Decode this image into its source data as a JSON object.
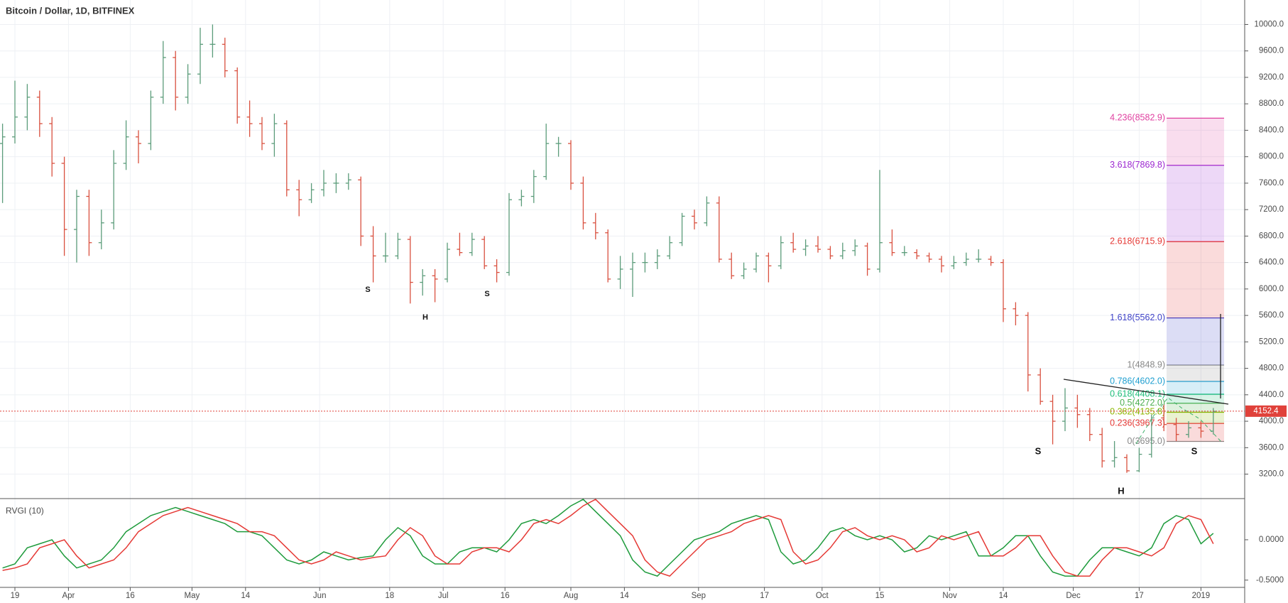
{
  "chart_data": {
    "type": "ohlc",
    "title": "Bitcoin / Dollar, 1D, BITFINEX",
    "x": [
      "03-16",
      "03-19",
      "03-22",
      "03-25",
      "03-28",
      "03-31",
      "04-03",
      "04-06",
      "04-09",
      "04-12",
      "04-15",
      "04-18",
      "04-21",
      "04-24",
      "04-27",
      "04-30",
      "05-03",
      "05-06",
      "05-09",
      "05-12",
      "05-15",
      "05-18",
      "05-21",
      "05-24",
      "05-27",
      "05-30",
      "06-02",
      "06-05",
      "06-08",
      "06-11",
      "06-14",
      "06-17",
      "06-20",
      "06-23",
      "06-26",
      "06-29",
      "07-02",
      "07-05",
      "07-08",
      "07-11",
      "07-14",
      "07-17",
      "07-20",
      "07-23",
      "07-26",
      "07-29",
      "08-01",
      "08-04",
      "08-07",
      "08-10",
      "08-13",
      "08-16",
      "08-19",
      "08-22",
      "08-25",
      "08-28",
      "08-31",
      "09-03",
      "09-06",
      "09-09",
      "09-12",
      "09-15",
      "09-18",
      "09-21",
      "09-24",
      "09-27",
      "09-30",
      "10-03",
      "10-06",
      "10-09",
      "10-12",
      "10-15",
      "10-18",
      "10-21",
      "10-24",
      "10-27",
      "10-30",
      "11-02",
      "11-05",
      "11-08",
      "11-11",
      "11-14",
      "11-17",
      "11-20",
      "11-23",
      "11-26",
      "11-29",
      "12-02",
      "12-05",
      "12-08",
      "12-11",
      "12-14",
      "12-17",
      "12-20",
      "12-23",
      "12-26",
      "12-29",
      "01-01",
      "01-04"
    ],
    "ohlc": [
      [
        8200,
        8500,
        7300,
        8300
      ],
      [
        8300,
        9150,
        8200,
        8600
      ],
      [
        8600,
        9100,
        8400,
        8900
      ],
      [
        8900,
        9000,
        8300,
        8500
      ],
      [
        8500,
        8600,
        7700,
        7900
      ],
      [
        7900,
        8000,
        6500,
        6900
      ],
      [
        6900,
        7500,
        6400,
        7400
      ],
      [
        7400,
        7500,
        6500,
        6700
      ],
      [
        6700,
        7200,
        6600,
        7000
      ],
      [
        7000,
        8100,
        6900,
        7900
      ],
      [
        7900,
        8550,
        7800,
        8300
      ],
      [
        8300,
        8400,
        7900,
        8200
      ],
      [
        8200,
        9000,
        8100,
        8900
      ],
      [
        8900,
        9750,
        8800,
        9500
      ],
      [
        9500,
        9600,
        8700,
        8900
      ],
      [
        8900,
        9400,
        8800,
        9250
      ],
      [
        9250,
        9950,
        9100,
        9700
      ],
      [
        9700,
        10000,
        9500,
        9700
      ],
      [
        9700,
        9800,
        9200,
        9300
      ],
      [
        9300,
        9350,
        8500,
        8600
      ],
      [
        8600,
        8850,
        8300,
        8500
      ],
      [
        8500,
        8600,
        8100,
        8200
      ],
      [
        8200,
        8650,
        8000,
        8500
      ],
      [
        8500,
        8550,
        7400,
        7500
      ],
      [
        7500,
        7650,
        7100,
        7350
      ],
      [
        7350,
        7600,
        7300,
        7500
      ],
      [
        7500,
        7800,
        7400,
        7600
      ],
      [
        7600,
        7750,
        7450,
        7600
      ],
      [
        7600,
        7750,
        7500,
        7650
      ],
      [
        7650,
        7700,
        6650,
        6800
      ],
      [
        6800,
        6950,
        6100,
        6500
      ],
      [
        6500,
        6850,
        6400,
        6500
      ],
      [
        6500,
        6850,
        6450,
        6750
      ],
      [
        6750,
        6800,
        5780,
        6100
      ],
      [
        6100,
        6300,
        5900,
        6200
      ],
      [
        6200,
        6300,
        5800,
        6150
      ],
      [
        6150,
        6700,
        6100,
        6600
      ],
      [
        6600,
        6850,
        6500,
        6550
      ],
      [
        6550,
        6850,
        6500,
        6750
      ],
      [
        6750,
        6800,
        6300,
        6350
      ],
      [
        6350,
        6450,
        6100,
        6250
      ],
      [
        6250,
        7450,
        6200,
        7350
      ],
      [
        7350,
        7500,
        7250,
        7400
      ],
      [
        7400,
        7800,
        7300,
        7700
      ],
      [
        7700,
        8500,
        7650,
        8200
      ],
      [
        8200,
        8300,
        8000,
        8200
      ],
      [
        8200,
        8250,
        7500,
        7600
      ],
      [
        7600,
        7700,
        6900,
        7000
      ],
      [
        7000,
        7150,
        6750,
        6850
      ],
      [
        6850,
        6900,
        6100,
        6150
      ],
      [
        6150,
        6500,
        6000,
        6300
      ],
      [
        6300,
        6550,
        5880,
        6400
      ],
      [
        6400,
        6550,
        6250,
        6400
      ],
      [
        6400,
        6600,
        6300,
        6500
      ],
      [
        6500,
        6800,
        6450,
        6700
      ],
      [
        6700,
        7150,
        6650,
        7100
      ],
      [
        7100,
        7200,
        6900,
        7000
      ],
      [
        7000,
        7400,
        6950,
        7300
      ],
      [
        7300,
        7400,
        6400,
        6450
      ],
      [
        6450,
        6550,
        6150,
        6200
      ],
      [
        6200,
        6400,
        6150,
        6300
      ],
      [
        6300,
        6550,
        6250,
        6500
      ],
      [
        6500,
        6550,
        6100,
        6350
      ],
      [
        6350,
        6800,
        6300,
        6700
      ],
      [
        6700,
        6850,
        6550,
        6600
      ],
      [
        6600,
        6750,
        6500,
        6650
      ],
      [
        6650,
        6800,
        6550,
        6600
      ],
      [
        6600,
        6650,
        6450,
        6500
      ],
      [
        6500,
        6700,
        6450,
        6580
      ],
      [
        6580,
        6750,
        6500,
        6650
      ],
      [
        6650,
        6700,
        6200,
        6300
      ],
      [
        6300,
        7800,
        6250,
        6700
      ],
      [
        6700,
        6900,
        6500,
        6550
      ],
      [
        6550,
        6650,
        6500,
        6550
      ],
      [
        6550,
        6600,
        6450,
        6500
      ],
      [
        6500,
        6550,
        6400,
        6450
      ],
      [
        6450,
        6500,
        6250,
        6350
      ],
      [
        6350,
        6500,
        6300,
        6400
      ],
      [
        6400,
        6550,
        6350,
        6450
      ],
      [
        6450,
        6600,
        6400,
        6450
      ],
      [
        6450,
        6500,
        6350,
        6400
      ],
      [
        6400,
        6450,
        5500,
        5700
      ],
      [
        5700,
        5800,
        5450,
        5600
      ],
      [
        5600,
        5650,
        4450,
        4700
      ],
      [
        4700,
        4800,
        4250,
        4300
      ],
      [
        4300,
        4400,
        3650,
        4000
      ],
      [
        4000,
        4500,
        3850,
        4200
      ],
      [
        4200,
        4400,
        3900,
        4100
      ],
      [
        4100,
        4200,
        3700,
        3800
      ],
      [
        3800,
        3900,
        3300,
        3400
      ],
      [
        3400,
        3700,
        3300,
        3450
      ],
      [
        3450,
        3500,
        3220,
        3250
      ],
      [
        3250,
        3600,
        3230,
        3500
      ],
      [
        3500,
        4100,
        3450,
        4050
      ],
      [
        4050,
        4250,
        3850,
        3950
      ],
      [
        3950,
        4050,
        3700,
        3800
      ],
      [
        3800,
        4000,
        3750,
        3900
      ],
      [
        3900,
        4000,
        3750,
        3850
      ],
      [
        3850,
        4200,
        3800,
        4150
      ]
    ],
    "up_color": "#5b9c7a",
    "down_color": "#d9503f",
    "ylim": [
      2830,
      10370
    ],
    "yticks": [
      {
        "value": 3200,
        "label": "3200.0"
      },
      {
        "value": 3600,
        "label": "3600.0"
      },
      {
        "value": 4000,
        "label": "4000.0"
      },
      {
        "value": 4400,
        "label": "4400.0"
      },
      {
        "value": 4800,
        "label": "4800.0"
      },
      {
        "value": 5200,
        "label": "5200.0"
      },
      {
        "value": 5600,
        "label": "5600.0"
      },
      {
        "value": 6000,
        "label": "6000.0"
      },
      {
        "value": 6400,
        "label": "6400.0"
      },
      {
        "value": 6800,
        "label": "6800.0"
      },
      {
        "value": 7200,
        "label": "7200.0"
      },
      {
        "value": 7600,
        "label": "7600.0"
      },
      {
        "value": 8000,
        "label": "8000.0"
      },
      {
        "value": 8400,
        "label": "8400.0"
      },
      {
        "value": 8800,
        "label": "8800.0"
      },
      {
        "value": 9200,
        "label": "9200.0"
      },
      {
        "value": 9600,
        "label": "9600.0"
      },
      {
        "value": 10000,
        "label": "10000.0"
      }
    ],
    "xticks": [
      {
        "value": "03-19",
        "label": "19"
      },
      {
        "value": "04-01",
        "label": "Apr"
      },
      {
        "value": "04-16",
        "label": "16"
      },
      {
        "value": "05-01",
        "label": "May"
      },
      {
        "value": "05-14",
        "label": "14"
      },
      {
        "value": "06-01",
        "label": "Jun"
      },
      {
        "value": "06-18",
        "label": "18"
      },
      {
        "value": "07-01",
        "label": "Jul"
      },
      {
        "value": "07-16",
        "label": "16"
      },
      {
        "value": "08-01",
        "label": "Aug"
      },
      {
        "value": "08-14",
        "label": "14"
      },
      {
        "value": "09-01",
        "label": "Sep"
      },
      {
        "value": "09-17",
        "label": "17"
      },
      {
        "value": "10-01",
        "label": "Oct"
      },
      {
        "value": "10-15",
        "label": "15"
      },
      {
        "value": "11-01",
        "label": "Nov"
      },
      {
        "value": "11-14",
        "label": "14"
      },
      {
        "value": "12-01",
        "label": "Dec"
      },
      {
        "value": "12-17",
        "label": "17"
      },
      {
        "value": "01-01",
        "label": "2019"
      }
    ],
    "grid": true,
    "last_price": 4152.4,
    "last_price_color": "#e0413a",
    "fib_levels": [
      {
        "label": "0(3695.0)",
        "value": 3695.0,
        "color": "#888888"
      },
      {
        "label": "0.236(3967.3)",
        "value": 3967.3,
        "color": "#e53935"
      },
      {
        "label": "0.382(4135.8)",
        "value": 4135.8,
        "color": "#8db600"
      },
      {
        "label": "0.5(4272.0)",
        "value": 4272.0,
        "color": "#4caf50"
      },
      {
        "label": "0.618(4408.1)",
        "value": 4408.1,
        "color": "#1fbf7a"
      },
      {
        "label": "0.786(4602.0)",
        "value": 4602.0,
        "color": "#1f9fd0"
      },
      {
        "label": "1(4848.9)",
        "value": 4848.9,
        "color": "#888888"
      },
      {
        "label": "1.618(5562.0)",
        "value": 5562.0,
        "color": "#3f43c8"
      },
      {
        "label": "2.618(6715.9)",
        "value": 6715.9,
        "color": "#e53935"
      },
      {
        "label": "3.618(7869.8)",
        "value": 7869.8,
        "color": "#9c27d0"
      },
      {
        "label": "4.236(8582.9)",
        "value": 8582.9,
        "color": "#e040a0"
      }
    ],
    "annotations": [
      "S",
      "H",
      "S",
      "S",
      "H",
      "S"
    ],
    "indicator": {
      "title": "RVGI (10)",
      "ylim": [
        -0.59,
        0.51
      ],
      "yticks": [
        {
          "value": 0,
          "label": "0.0000"
        },
        {
          "value": -0.5,
          "label": "-0.5000"
        }
      ],
      "series": [
        {
          "color": "#1e9b3c",
          "values": [
            -0.35,
            -0.3,
            -0.1,
            -0.05,
            0,
            -0.2,
            -0.35,
            -0.3,
            -0.25,
            -0.1,
            0.1,
            0.2,
            0.3,
            0.35,
            0.4,
            0.35,
            0.3,
            0.25,
            0.2,
            0.1,
            0.1,
            0.05,
            -0.1,
            -0.25,
            -0.3,
            -0.25,
            -0.15,
            -0.2,
            -0.25,
            -0.22,
            -0.2,
            0,
            0.15,
            0.05,
            -0.2,
            -0.3,
            -0.3,
            -0.15,
            -0.1,
            -0.1,
            -0.15,
            0,
            0.2,
            0.25,
            0.2,
            0.3,
            0.42,
            0.5,
            0.35,
            0.2,
            0.05,
            -0.25,
            -0.4,
            -0.45,
            -0.3,
            -0.15,
            0,
            0.05,
            0.1,
            0.2,
            0.25,
            0.3,
            0.25,
            -0.15,
            -0.3,
            -0.25,
            -0.1,
            0.1,
            0.15,
            0.05,
            0,
            0.05,
            0,
            -0.15,
            -0.1,
            0.05,
            0,
            0.05,
            0.1,
            -0.2,
            -0.2,
            -0.1,
            0.05,
            0.05,
            -0.2,
            -0.4,
            -0.45,
            -0.45,
            -0.25,
            -0.1,
            -0.1,
            -0.15,
            -0.2,
            -0.1,
            0.2,
            0.3,
            0.25,
            -0.05,
            0.08
          ]
        },
        {
          "color": "#e53935",
          "values": [
            -0.38,
            -0.35,
            -0.3,
            -0.1,
            -0.05,
            0,
            -0.2,
            -0.35,
            -0.3,
            -0.25,
            -0.1,
            0.1,
            0.2,
            0.3,
            0.35,
            0.4,
            0.35,
            0.3,
            0.25,
            0.2,
            0.1,
            0.1,
            0.05,
            -0.1,
            -0.25,
            -0.3,
            -0.25,
            -0.15,
            -0.2,
            -0.25,
            -0.22,
            -0.2,
            0,
            0.15,
            0.05,
            -0.2,
            -0.3,
            -0.3,
            -0.15,
            -0.1,
            -0.1,
            -0.15,
            0,
            0.2,
            0.25,
            0.2,
            0.3,
            0.42,
            0.5,
            0.35,
            0.2,
            0.05,
            -0.25,
            -0.4,
            -0.45,
            -0.3,
            -0.15,
            0,
            0.05,
            0.1,
            0.2,
            0.25,
            0.3,
            0.25,
            -0.15,
            -0.3,
            -0.25,
            -0.1,
            0.1,
            0.15,
            0.05,
            0,
            0.05,
            0,
            -0.15,
            -0.1,
            0.05,
            0,
            0.05,
            0.1,
            -0.2,
            -0.2,
            -0.1,
            0.05,
            0.05,
            -0.2,
            -0.4,
            -0.45,
            -0.45,
            -0.25,
            -0.1,
            -0.1,
            -0.15,
            -0.2,
            -0.1,
            0.2,
            0.3,
            0.25,
            -0.05
          ]
        }
      ]
    }
  }
}
